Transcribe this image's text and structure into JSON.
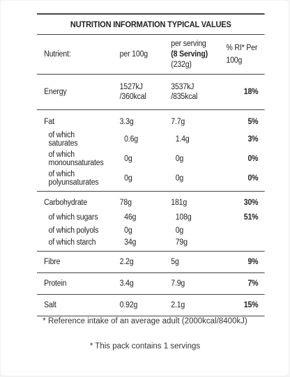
{
  "title": "NUTRITION INFORMATION TYPICAL VALUES",
  "header": {
    "nutrient": "Nutrient:",
    "per100": "per 100g",
    "serving_line1": "per serving",
    "serving_line2": "(8 Serving)",
    "serving_line3": "(232g)",
    "ri_line1": "% RI* Per",
    "ri_line2": "100g"
  },
  "rows": {
    "energy": {
      "name": "Energy",
      "per100_l1": "1527kJ",
      "per100_l2": "/360kcal",
      "serving_l1": "3537kJ",
      "serving_l2": "/835kcal",
      "ri": "18%"
    },
    "fat": {
      "name": "Fat",
      "per100": "3.3g",
      "serving": "7.7g",
      "ri": "5%"
    },
    "saturates": {
      "name_l1": "of which",
      "name_l2": "saturates",
      "per100": "0.6g",
      "serving": "1.4g",
      "ri": "3%"
    },
    "mono": {
      "name_l1": "of which",
      "name_l2": "monounsaturates",
      "per100": "0g",
      "serving": "0g",
      "ri": "0%"
    },
    "poly": {
      "name_l1": "of which",
      "name_l2": "polyunsaturates",
      "per100": "0g",
      "serving": "0g",
      "ri": "0%"
    },
    "carb": {
      "name": "Carbohydrate",
      "per100": "78g",
      "serving": "181g",
      "ri": "30%"
    },
    "sugars": {
      "name": "of which sugars",
      "per100": "46g",
      "serving": "108g",
      "ri": "51%"
    },
    "polyols": {
      "name": "of which polyols",
      "per100": "0g",
      "serving": "0g"
    },
    "starch": {
      "name": "of which starch",
      "per100": "34g",
      "serving": "79g"
    },
    "fibre": {
      "name": "Fibre",
      "per100": "2.2g",
      "serving": "5g",
      "ri": "9%"
    },
    "protein": {
      "name": "Protein",
      "per100": "3.4g",
      "serving": "7.9g",
      "ri": "7%"
    },
    "salt": {
      "name": "Salt",
      "per100": "0.92g",
      "serving": "2.1g",
      "ri": "15%"
    }
  },
  "notes": {
    "reference": "* Reference intake of an average adult (2000kcal/8400kJ)",
    "pack": "* This pack contains 1 servings"
  }
}
